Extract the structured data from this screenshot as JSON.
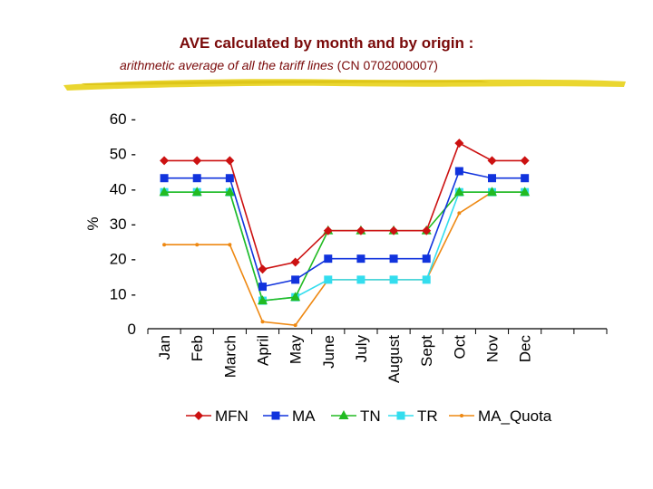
{
  "title": "AVE calculated by month and by origin :",
  "subtitle": {
    "italic": "arithmetic average of all the tariff lines",
    "code": "(CN 0702000007)"
  },
  "colors": {
    "MFN": "#cc1111",
    "MA": "#1133dd",
    "TN": "#22bb22",
    "TR": "#33ddee",
    "MA_Quota": "#ee8811",
    "title": "#7a0a0a",
    "brush": "#e8d21a"
  },
  "chart_data": {
    "type": "line",
    "title": "AVE calculated by month and by origin :",
    "ylabel": "%",
    "xlabel": "",
    "ylim": [
      0,
      60
    ],
    "yticks": [
      0,
      10,
      20,
      30,
      40,
      50,
      60
    ],
    "ytick_labels": [
      "0",
      "10 -",
      "20 -",
      "30 -",
      "40 -",
      "50 -",
      "60 -"
    ],
    "categories": [
      "Jan",
      "Feb",
      "March",
      "April",
      "May",
      "June",
      "July",
      "August",
      "Sept",
      "Oct",
      "Nov",
      "Dec"
    ],
    "legend_position": "bottom",
    "series": [
      {
        "name": "MFN",
        "marker": "diamond",
        "values": [
          48,
          48,
          48,
          17,
          19,
          28,
          28,
          28,
          28,
          53,
          48,
          48
        ]
      },
      {
        "name": "MA",
        "marker": "square",
        "values": [
          43,
          43,
          43,
          12,
          14,
          20,
          20,
          20,
          20,
          45,
          43,
          43
        ]
      },
      {
        "name": "TN",
        "marker": "triangle",
        "values": [
          39,
          39,
          39,
          8,
          9,
          28,
          28,
          28,
          28,
          39,
          39,
          39
        ]
      },
      {
        "name": "TR",
        "marker": "square",
        "values": [
          39,
          39,
          39,
          8,
          9,
          14,
          14,
          14,
          14,
          39,
          39,
          39
        ]
      },
      {
        "name": "MA_Quota",
        "marker": "dot",
        "values": [
          24,
          24,
          24,
          2,
          1,
          14,
          14,
          14,
          14,
          33,
          39,
          39
        ]
      }
    ]
  }
}
